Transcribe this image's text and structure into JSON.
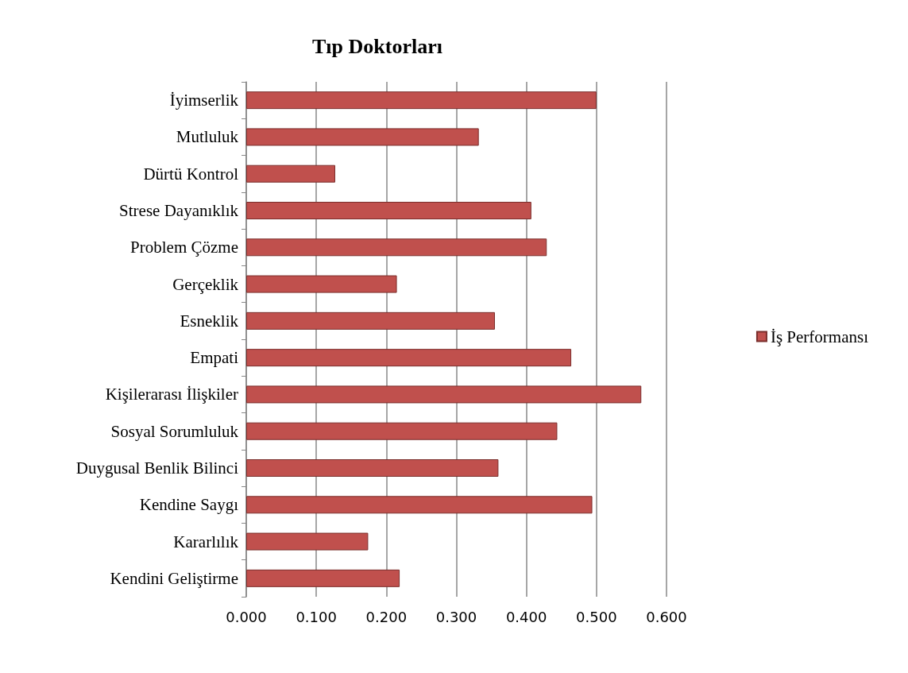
{
  "chart_data": {
    "type": "bar",
    "orientation": "horizontal",
    "title": "Tıp Doktorları",
    "categories": [
      "İyimserlik",
      "Mutluluk",
      "Dürtü Kontrol",
      "Strese Dayanıklık",
      "Problem Çözme",
      "Gerçeklik",
      "Esneklik",
      "Empati",
      "Kişilerarası İlişkiler",
      "Sosyal Sorumluluk",
      "Duygusal Benlik Bilinci",
      "Kendine Saygı",
      "Kararlılık",
      "Kendini Geliştirme"
    ],
    "series": [
      {
        "name": "İş Performansı",
        "color": "#c0504d",
        "values": [
          0.5,
          0.332,
          0.127,
          0.407,
          0.429,
          0.215,
          0.355,
          0.464,
          0.564,
          0.444,
          0.36,
          0.494,
          0.174,
          0.219
        ]
      }
    ],
    "xlim": [
      0,
      0.6
    ],
    "xticks": [
      {
        "value": 0,
        "label": "0.000"
      },
      {
        "value": 0.1,
        "label": "0.100"
      },
      {
        "value": 0.2,
        "label": "0.200"
      },
      {
        "value": 0.3,
        "label": "0.300"
      },
      {
        "value": 0.4,
        "label": "0.400"
      },
      {
        "value": 0.5,
        "label": "0.500"
      },
      {
        "value": 0.6,
        "label": "0.600"
      }
    ],
    "grid": "x",
    "legend": "right"
  }
}
